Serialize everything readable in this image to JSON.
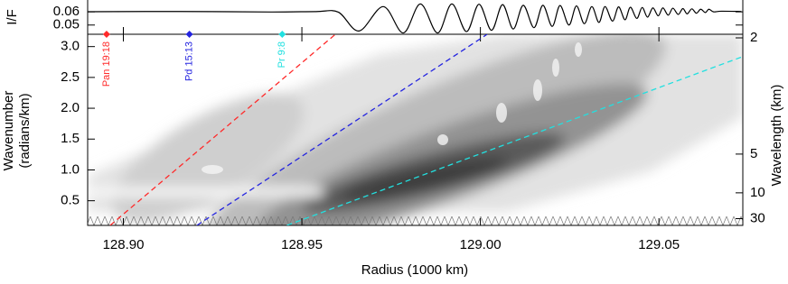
{
  "chart_data": [
    {
      "type": "line",
      "ylabel": "I/F",
      "x": [
        128.89,
        128.916,
        128.9413,
        128.9539,
        128.9602,
        128.966,
        128.9728,
        128.9784,
        128.9832,
        128.988,
        128.992,
        128.9961,
        128.9996,
        129.0031,
        129.0062,
        129.0092,
        129.012,
        129.015,
        129.0175,
        129.0201,
        129.0223,
        129.0248,
        129.0269,
        129.0291,
        129.0312,
        129.0332,
        129.0349,
        129.037,
        129.0387,
        129.0405,
        129.042,
        129.0438,
        129.0453,
        129.0468,
        129.0483,
        129.0498,
        129.0511,
        129.0526,
        129.0539,
        129.0554,
        129.0567,
        129.0579,
        129.0592,
        129.0605,
        129.0617,
        129.063,
        129.064,
        129.0653,
        129.0675,
        129.0731
      ],
      "series": [
        {
          "color": "#000000",
          "values": [
            0.0601,
            0.0603,
            0.0599,
            0.0602,
            0.0598,
            0.0455,
            0.064,
            0.044,
            0.066,
            0.044,
            0.066,
            0.045,
            0.0658,
            0.046,
            0.0655,
            0.047,
            0.065,
            0.048,
            0.065,
            0.049,
            0.0648,
            0.05,
            0.0645,
            0.051,
            0.064,
            0.052,
            0.064,
            0.053,
            0.0638,
            0.054,
            0.0635,
            0.055,
            0.0633,
            0.056,
            0.063,
            0.057,
            0.063,
            0.0575,
            0.0628,
            0.058,
            0.0625,
            0.0585,
            0.0623,
            0.059,
            0.062,
            0.0595,
            0.062,
            0.06,
            0.0605,
            0.0603
          ]
        }
      ],
      "xlim": [
        128.89,
        129.0735
      ],
      "ylim": [
        0.043,
        0.069
      ],
      "yticks": [
        0.05,
        0.06
      ]
    },
    {
      "type": "wavelet",
      "xlabel": "Radius (1000 km)",
      "ylabel": [
        "Wavenumber",
        "(radians/km)"
      ],
      "y2label": "Wavelength (km)",
      "xlim": [
        128.89,
        129.0735
      ],
      "ylim": [
        0.1,
        3.2
      ],
      "xticks": [
        {
          "value": 128.9,
          "label": "128.90"
        },
        128.95,
        {
          "value": 129.0,
          "label": "129.00"
        },
        129.05
      ],
      "yticks": [
        0.5,
        {
          "value": 1,
          "label": "1.0"
        },
        1.5,
        {
          "value": 2,
          "label": "2.0"
        },
        2.5,
        {
          "value": 3,
          "label": "3.0"
        }
      ],
      "y2ticks": [
        2,
        5,
        10,
        30
      ],
      "series": [
        {
          "color": "#ff2a2a",
          "x": [
            128.8963,
            128.9594
          ],
          "y": [
            0.1,
            3.2
          ]
        },
        {
          "color": "#2424e0",
          "x": [
            128.9206,
            129.0019
          ],
          "y": [
            0.1,
            3.2
          ]
        },
        {
          "color": "#22e0e0",
          "x": [
            128.9458,
            129.0731
          ],
          "y": [
            0.1,
            2.83
          ]
        }
      ],
      "resonances": [
        {
          "label": "Pan 19:18",
          "x": 128.8953,
          "color": "#ff2a2a"
        },
        {
          "label": "Pd 15:13",
          "x": 128.9185,
          "color": "#2424e0"
        },
        {
          "label": "Pr 9:8",
          "x": 128.9445,
          "color": "#22e0e0"
        }
      ]
    }
  ]
}
